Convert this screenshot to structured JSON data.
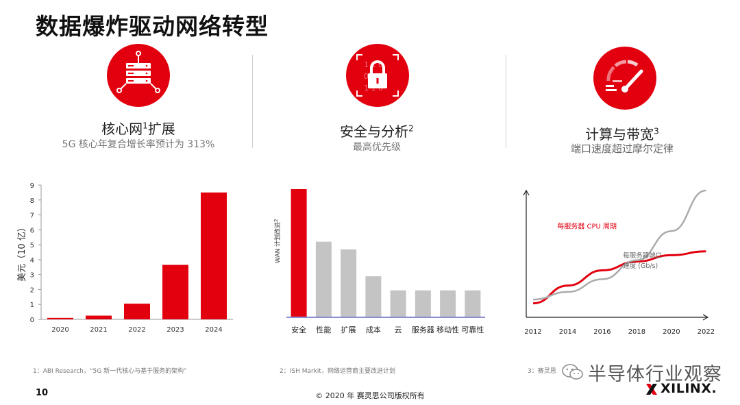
{
  "page": {
    "title": "数据爆炸驱动网络转型",
    "page_number": "10",
    "copyright": "© 2020 年 赛灵思公司版权所有",
    "logo": "XILINX.",
    "watermark": "半导体行业观察"
  },
  "features": [
    {
      "title": "核心网",
      "sup": "1",
      "title_after": "扩展",
      "subtitle": "5G 核心年复合增长率预计为 313%",
      "icon": "server-network-icon"
    },
    {
      "title": "安全与分析",
      "sup": "2",
      "title_after": "",
      "subtitle": "最高优先级",
      "icon": "lock-icon",
      "icon_digits": [
        "1 1 0",
        "0 0 1",
        "1 1 0"
      ]
    },
    {
      "title": "计算与带宽",
      "sup": "3",
      "title_after": "",
      "subtitle": "端口速度超过摩尔定律",
      "icon": "gauge-icon"
    }
  ],
  "footnotes": {
    "f1": "1：ABI Research，“5G 新一代核心与基于服务的架构”",
    "f2": "2：ISH Markit，网络运营商主要改进计划",
    "f3": "3：赛灵思"
  },
  "chart_data": [
    {
      "type": "bar",
      "categories": [
        "2020",
        "2021",
        "2022",
        "2023",
        "2024"
      ],
      "values": [
        0.1,
        0.25,
        1.05,
        3.65,
        8.5
      ],
      "ylabel": "美元（10 亿）",
      "ylim": [
        0,
        9
      ],
      "yticks": [
        "0",
        "1",
        "2",
        "3",
        "4",
        "5",
        "6",
        "7",
        "8",
        "9"
      ],
      "grid": false,
      "color": "#e2000f"
    },
    {
      "type": "bar",
      "categories": [
        "安全",
        "性能",
        "扩展",
        "成本",
        "云",
        "服务器",
        "移动性",
        "可靠性"
      ],
      "values": [
        100,
        59,
        53,
        32,
        21,
        21,
        21,
        21
      ],
      "ylabel": "WAN 计划改进",
      "ylabel_sup": "2",
      "highlight_color": "#e2000f",
      "color": "#c4c4c4",
      "axis_color": "#8b8fd0"
    },
    {
      "type": "line",
      "x_ticks": [
        "2012",
        "2014",
        "2016",
        "2018",
        "2020",
        "2022"
      ],
      "xlim": [
        2012,
        2022.5
      ],
      "ylim": [
        0,
        1
      ],
      "series": [
        {
          "name": "每服务器 CPU 周期",
          "color": "#e2000f",
          "x": [
            2012,
            2014,
            2016,
            2018,
            2020,
            2022
          ],
          "y": [
            0.11,
            0.25,
            0.37,
            0.44,
            0.49,
            0.52
          ]
        },
        {
          "name": "每服务器端口速度（Gb/s）",
          "name_line1": "每服务器端口",
          "name_line2": "速度 (Gb/s)",
          "color": "#ababab",
          "x": [
            2012,
            2014,
            2016,
            2018,
            2020,
            2022
          ],
          "y": [
            0.14,
            0.2,
            0.3,
            0.45,
            0.68,
            1.0
          ]
        }
      ]
    }
  ]
}
